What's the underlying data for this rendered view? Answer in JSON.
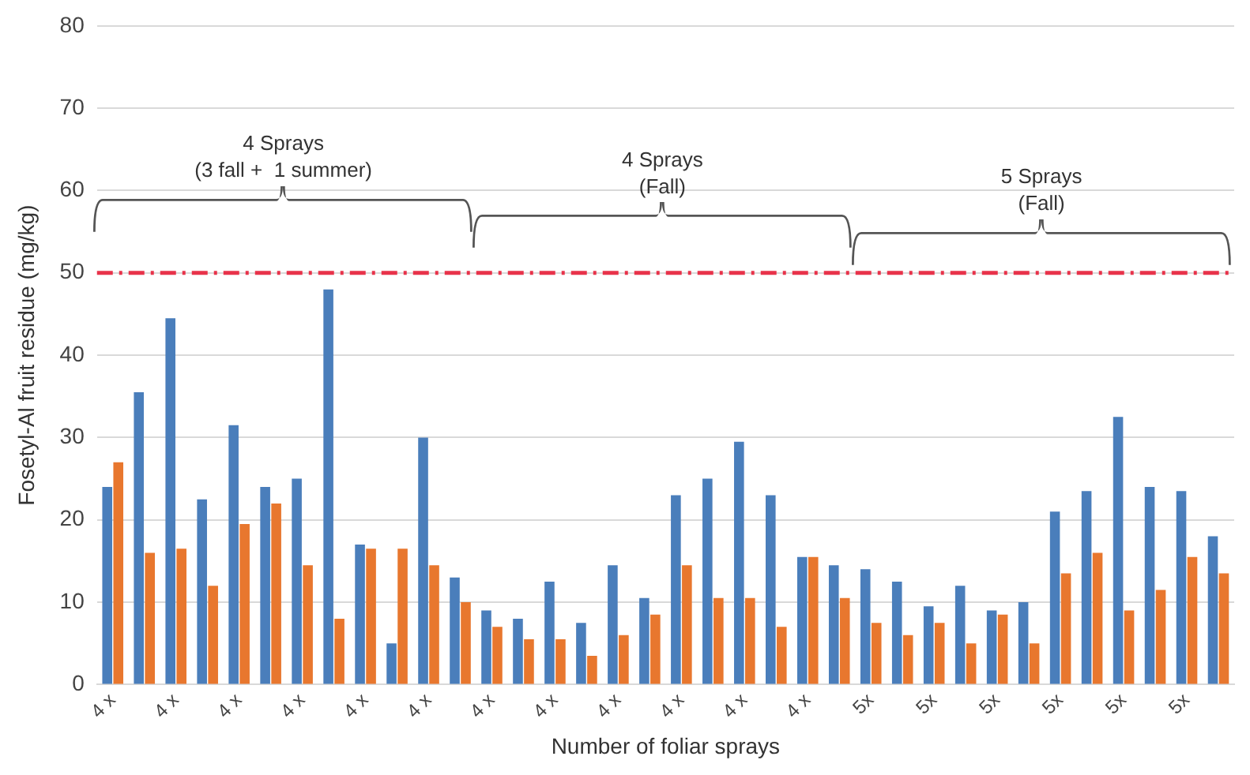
{
  "chart_data": {
    "type": "bar",
    "xlabel": "Number of foliar sprays",
    "ylabel": "Fosetyl-Al fruit residue (mg/kg)",
    "categories": [
      "4 x",
      null,
      "4 x",
      null,
      "4 x",
      null,
      "4 x",
      null,
      "4 x",
      null,
      "4 x",
      null,
      "4 x",
      null,
      "4 x",
      null,
      "4 x",
      null,
      "4 x",
      null,
      "4 x",
      null,
      "4 x",
      null,
      "5x",
      null,
      "5x",
      null,
      "5x",
      null,
      "5x",
      null,
      "5x",
      null,
      "5x",
      null
    ],
    "series": [
      {
        "color": "#4a7ebb",
        "values": [
          24,
          35.5,
          44.5,
          22.5,
          31.5,
          24,
          25,
          48,
          17,
          5,
          30,
          13,
          9,
          8,
          12.5,
          7.5,
          14.5,
          10.5,
          23,
          25,
          29.5,
          23,
          15.5,
          14.5,
          14,
          12.5,
          9.5,
          12,
          9,
          10,
          21,
          23.5,
          32.5,
          24,
          23.5,
          18
        ]
      },
      {
        "color": "#e8772e",
        "values": [
          27,
          16,
          16.5,
          12,
          19.5,
          22,
          14.5,
          8,
          16.5,
          16.5,
          14.5,
          10,
          7,
          5.5,
          5.5,
          3.5,
          6,
          8.5,
          14.5,
          10.5,
          10.5,
          7,
          15.5,
          10.5,
          7.5,
          6,
          7.5,
          5,
          8.5,
          5,
          13.5,
          16,
          9,
          11.5,
          15.5,
          13.5
        ]
      }
    ],
    "ylim": [
      0,
      80
    ],
    "yticks": [
      0,
      10,
      20,
      30,
      40,
      50,
      60,
      70,
      80
    ],
    "grid": "y",
    "ref_lines": [
      {
        "axis": "y",
        "value": 50,
        "color": "#e8334a",
        "line_style": "dashdot"
      }
    ],
    "annotations": [
      "4 Sprays\n(3 fall +  1 summer)",
      "4 Sprays\n(Fall)",
      "5 Sprays\n(Fall)"
    ]
  }
}
